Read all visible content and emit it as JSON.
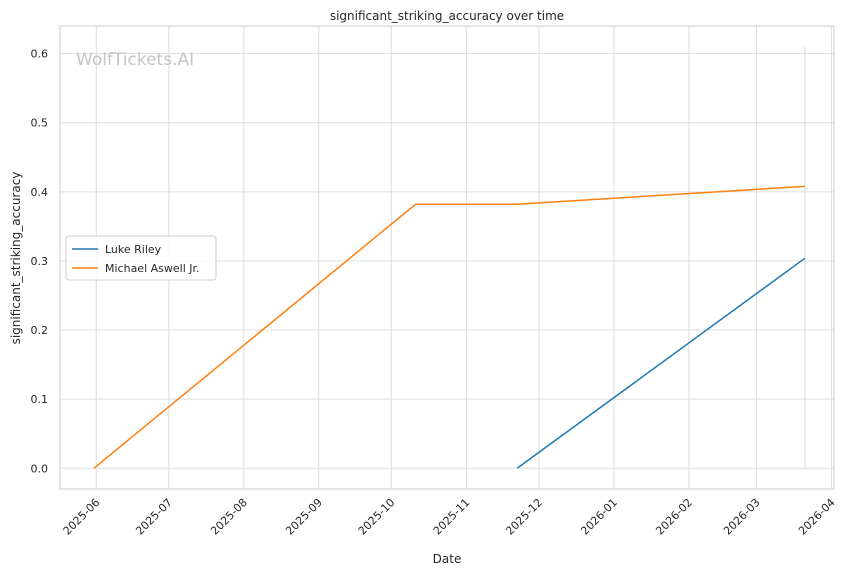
{
  "watermark": "WolfTickets.AI",
  "chart_data": {
    "type": "line",
    "title": "significant_striking_accuracy over time",
    "xlabel": "Date",
    "ylabel": "significant_striking_accuracy",
    "x_type": "date",
    "xlim": [
      "2025-05-17",
      "2026-04-02"
    ],
    "ylim": [
      -0.03,
      0.64
    ],
    "x_ticks": [
      "2025-06",
      "2025-07",
      "2025-08",
      "2025-09",
      "2025-10",
      "2025-11",
      "2025-12",
      "2026-01",
      "2026-02",
      "2026-03",
      "2026-04"
    ],
    "y_ticks": [
      "0.0",
      "0.1",
      "0.2",
      "0.3",
      "0.4",
      "0.5",
      "0.6"
    ],
    "grid": true,
    "legend_position": "center-left",
    "series": [
      {
        "name": "Luke Riley",
        "color": "#1f77b4",
        "x": [
          "2025-11-22",
          "2026-03-21"
        ],
        "y": [
          0.0,
          0.304
        ]
      },
      {
        "name": "Michael Aswell Jr.",
        "color": "#ff7f0e",
        "x": [
          "2025-05-31",
          "2025-10-11",
          "2025-11-22",
          "2026-03-21"
        ],
        "y": [
          0.0,
          0.382,
          0.382,
          0.408
        ]
      }
    ],
    "vertical_marker": {
      "x": "2026-03-21",
      "color": "#c7dde6"
    }
  }
}
